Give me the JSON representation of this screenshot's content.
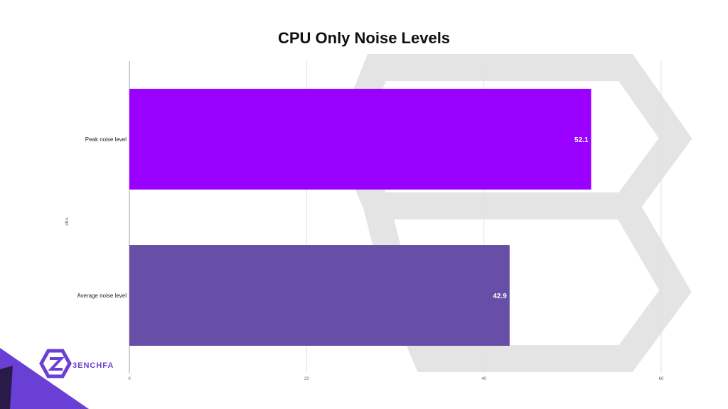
{
  "brand": {
    "logo_text": "3ENCHFA",
    "watermark_color": "#e4e4e4",
    "corner_color": "#6a3fd6",
    "corner_dark_color": "#2a1a4a"
  },
  "chart_data": {
    "type": "bar",
    "orientation": "horizontal",
    "title": "CPU Only Noise Levels",
    "ylabel": "dBA",
    "xlabel": "",
    "categories": [
      "Peak noise level",
      "Average noise level"
    ],
    "values": [
      52.1,
      42.9
    ],
    "value_labels": [
      "52.1",
      "42.9"
    ],
    "colors": [
      "#9900ff",
      "#674ea7"
    ],
    "xlim": [
      0,
      60
    ],
    "ticks": [
      0,
      20,
      40,
      60
    ],
    "tick_labels": [
      "0",
      "20",
      "40",
      "60"
    ],
    "grid": true,
    "legend": "none"
  }
}
